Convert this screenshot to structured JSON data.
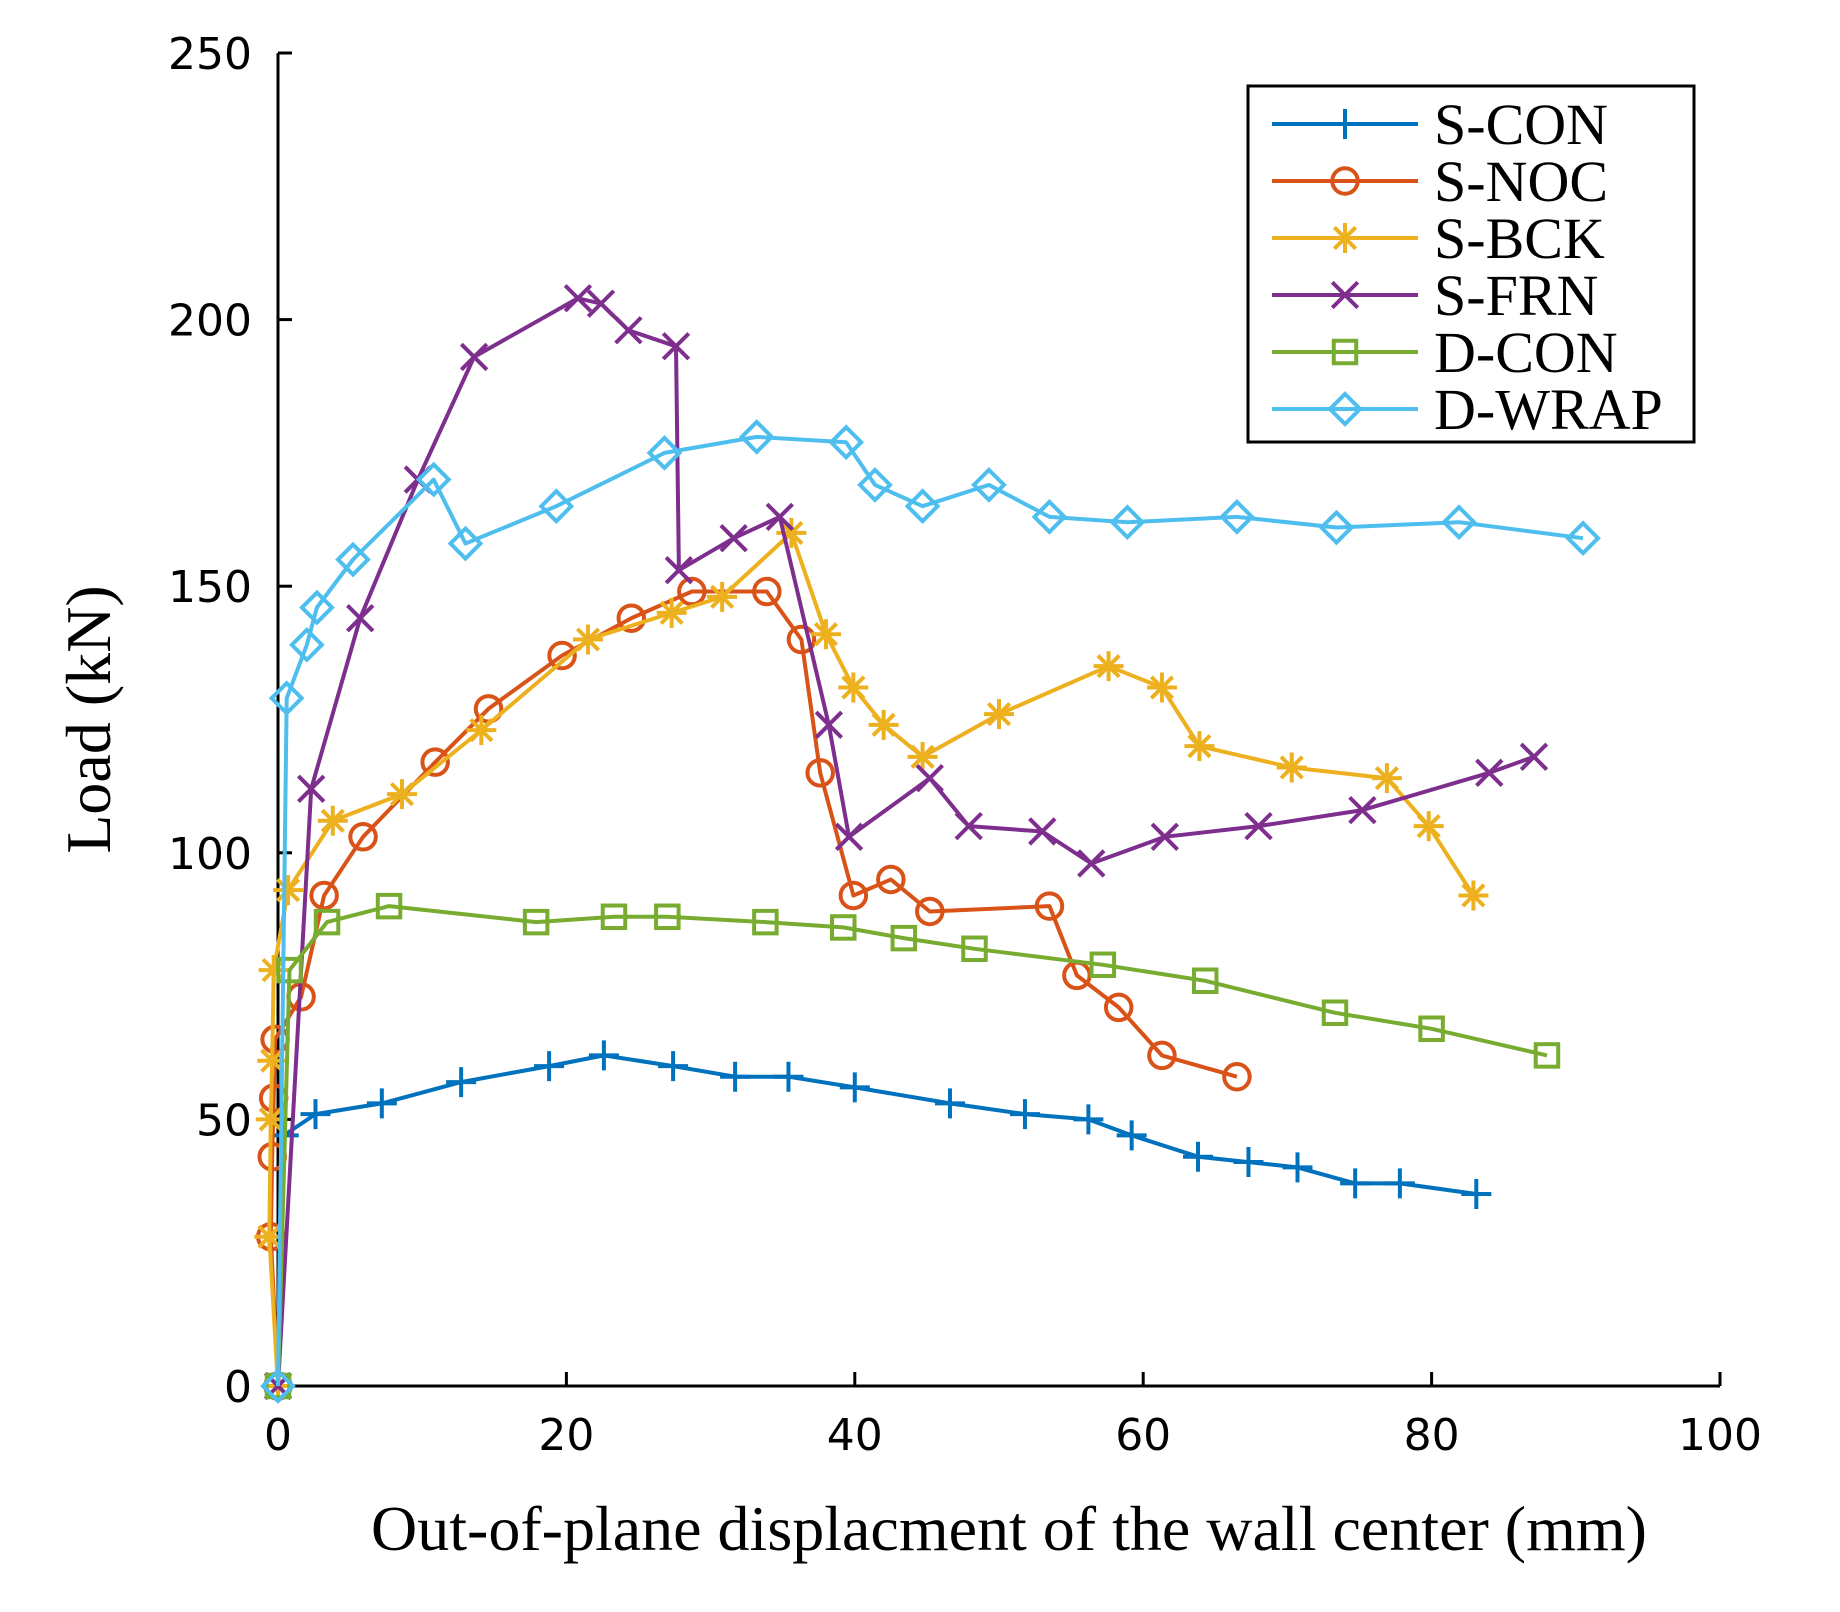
{
  "chart_data": {
    "type": "line",
    "title": "",
    "xlabel": "Out-of-plane displacment of the wall center (mm)",
    "ylabel": "Load (kN)",
    "xlim": [
      0,
      100
    ],
    "ylim": [
      0,
      250
    ],
    "xticks": [
      0,
      20,
      40,
      60,
      80,
      100
    ],
    "yticks": [
      0,
      50,
      100,
      150,
      200,
      250
    ],
    "xtick_labels": [
      "0",
      "20",
      "40",
      "60",
      "80",
      "100"
    ],
    "ytick_labels": [
      "0",
      "50",
      "100",
      "150",
      "200",
      "250"
    ],
    "grid": false,
    "legend_position": "top-right",
    "series": [
      {
        "name": "S-CON",
        "color": "#0072BD",
        "marker": "plus",
        "x": [
          0.0,
          0.4,
          2.6,
          7.2,
          12.7,
          18.8,
          22.6,
          27.4,
          31.7,
          35.4,
          40.0,
          46.6,
          51.8,
          56.2,
          59.2,
          63.8,
          67.3,
          70.7,
          74.7,
          77.8,
          83.1
        ],
        "y": [
          0,
          47,
          51,
          53,
          57,
          60,
          62,
          60,
          58,
          58,
          56,
          53,
          51,
          50,
          47,
          43,
          42,
          41,
          38,
          38,
          36
        ]
      },
      {
        "name": "S-NOC",
        "color": "#D95319",
        "marker": "circle",
        "x": [
          0.0,
          -0.5,
          -0.4,
          -0.3,
          -0.2,
          1.6,
          3.2,
          5.9,
          10.9,
          14.6,
          19.7,
          24.5,
          28.7,
          33.9,
          36.3,
          37.6,
          39.9,
          42.5,
          45.2,
          53.5,
          55.4,
          58.3,
          61.3,
          66.5
        ],
        "y": [
          0,
          28,
          43,
          54,
          65,
          73,
          92,
          103,
          117,
          127,
          137,
          144,
          149,
          149,
          140,
          115,
          92,
          95,
          89,
          90,
          77,
          71,
          62,
          58
        ]
      },
      {
        "name": "S-BCK",
        "color": "#EDB120",
        "marker": "asterisk",
        "x": [
          0.0,
          -0.6,
          -0.5,
          -0.4,
          -0.3,
          0.7,
          3.8,
          8.6,
          14.1,
          21.5,
          27.3,
          30.8,
          35.6,
          38.0,
          39.9,
          42.0,
          44.7,
          50.0,
          57.6,
          61.3,
          63.9,
          70.3,
          76.9,
          79.8,
          82.9
        ],
        "y": [
          0,
          28,
          50,
          61,
          78,
          93,
          106,
          111,
          123,
          140,
          145,
          148,
          160,
          141,
          131,
          124,
          118,
          126,
          135,
          131,
          120,
          116,
          114,
          105,
          92
        ]
      },
      {
        "name": "S-FRN",
        "color": "#7E2F8E",
        "marker": "x",
        "x": [
          0.0,
          2.3,
          5.7,
          9.7,
          13.6,
          20.8,
          22.4,
          24.3,
          27.6,
          27.8,
          31.6,
          34.8,
          38.2,
          39.6,
          45.2,
          47.9,
          53.0,
          56.4,
          61.5,
          68.0,
          75.2,
          84.0,
          87.1
        ],
        "y": [
          0,
          112,
          144,
          170,
          193,
          204,
          203,
          198,
          195,
          153,
          159,
          163,
          124,
          103,
          114,
          105,
          104,
          98,
          103,
          105,
          108,
          115,
          118
        ]
      },
      {
        "name": "D-CON",
        "color": "#77AC30",
        "marker": "square",
        "x": [
          0.0,
          0.8,
          3.4,
          7.7,
          17.9,
          23.3,
          27.0,
          33.8,
          39.2,
          43.4,
          48.3,
          57.2,
          64.3,
          73.3,
          80.0,
          88.0
        ],
        "y": [
          0,
          78,
          87,
          90,
          87,
          88,
          88,
          87,
          86,
          84,
          82,
          79,
          76,
          70,
          67,
          62
        ]
      },
      {
        "name": "D-WRAP",
        "color": "#4DBEEE",
        "marker": "diamond",
        "x": [
          0.0,
          0.6,
          2.0,
          2.7,
          5.2,
          10.8,
          13.0,
          19.3,
          26.8,
          33.2,
          39.4,
          41.4,
          44.7,
          49.3,
          53.5,
          58.9,
          66.5,
          73.4,
          81.9,
          90.5
        ],
        "y": [
          0,
          129,
          139,
          146,
          155,
          170,
          158,
          165,
          175,
          178,
          177,
          169,
          165,
          169,
          163,
          162,
          163,
          161,
          162,
          159
        ]
      }
    ]
  }
}
